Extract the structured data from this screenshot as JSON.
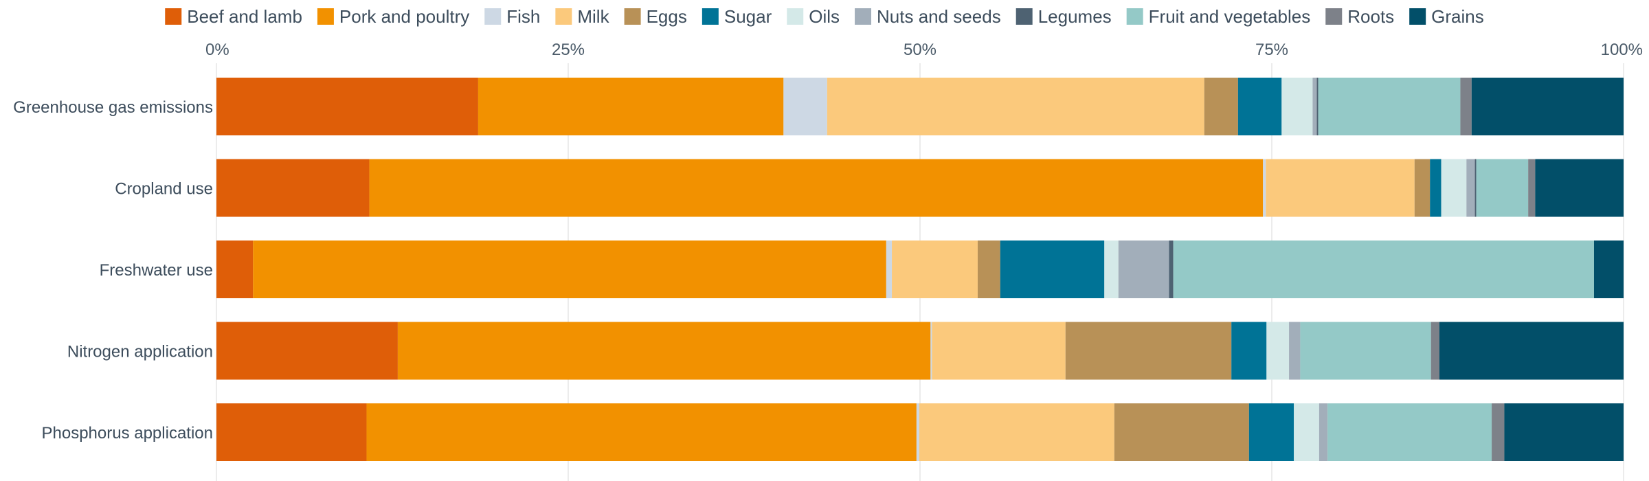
{
  "chart_data": {
    "type": "bar",
    "orientation": "horizontal",
    "stacked": "percent",
    "legend_position": "top",
    "grid": true,
    "xlim": [
      0,
      100
    ],
    "x_ticks": [
      "0%",
      "25%",
      "50%",
      "75%",
      "100%"
    ],
    "categories": [
      "Greenhouse gas emissions",
      "Cropland use",
      "Freshwater use",
      "Nitrogen application",
      "Phosphorus application"
    ],
    "series": [
      {
        "name": "Beef and lamb",
        "color": "#df5e08",
        "values": [
          18.6,
          10.9,
          2.6,
          12.9,
          10.7
        ]
      },
      {
        "name": "Pork and poultry",
        "color": "#f29100",
        "values": [
          21.7,
          63.7,
          45.0,
          37.9,
          39.2
        ]
      },
      {
        "name": "Fish",
        "color": "#cdd8e4",
        "values": [
          3.1,
          0.2,
          0.4,
          0.1,
          0.2
        ]
      },
      {
        "name": "Milk",
        "color": "#fbc97c",
        "values": [
          26.8,
          10.6,
          6.1,
          9.5,
          13.9
        ]
      },
      {
        "name": "Eggs",
        "color": "#b89157",
        "values": [
          2.4,
          1.1,
          1.6,
          11.8,
          9.6
        ]
      },
      {
        "name": "Sugar",
        "color": "#007396",
        "values": [
          3.1,
          0.8,
          7.4,
          2.5,
          3.2
        ]
      },
      {
        "name": "Oils",
        "color": "#d4e9e8",
        "values": [
          2.2,
          1.8,
          1.0,
          1.6,
          1.8
        ]
      },
      {
        "name": "Nuts and seeds",
        "color": "#a2aeba",
        "values": [
          0.3,
          0.6,
          3.6,
          0.8,
          0.6
        ]
      },
      {
        "name": "Legumes",
        "color": "#4e6272",
        "values": [
          0.1,
          0.1,
          0.3,
          0.0,
          0.0
        ]
      },
      {
        "name": "Fruit and vegetables",
        "color": "#94c9c7",
        "values": [
          10.1,
          3.7,
          29.9,
          9.3,
          11.7
        ]
      },
      {
        "name": "Roots",
        "color": "#7d8189",
        "values": [
          0.8,
          0.5,
          0.0,
          0.6,
          0.9
        ]
      },
      {
        "name": "Grains",
        "color": "#024f69",
        "values": [
          10.8,
          6.3,
          2.1,
          13.1,
          8.5
        ]
      }
    ]
  }
}
